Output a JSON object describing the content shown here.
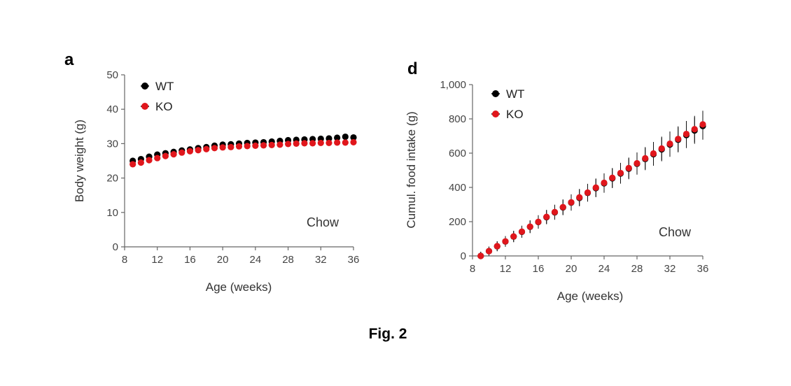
{
  "caption": "Fig. 2",
  "chart_data": [
    {
      "type": "scatter",
      "panel": "a",
      "xlabel": "Age (weeks)",
      "ylabel": "Body weight (g)",
      "xlim": [
        8,
        36
      ],
      "ylim": [
        0,
        50
      ],
      "xticks": [
        "8",
        "12",
        "16",
        "20",
        "24",
        "28",
        "32",
        "36"
      ],
      "yticks": [
        "0",
        "10",
        "20",
        "30",
        "40",
        "50"
      ],
      "annotation": "Chow",
      "legend_position": "top-left",
      "grid": false,
      "x": [
        9,
        10,
        11,
        12,
        13,
        14,
        15,
        16,
        17,
        18,
        19,
        20,
        21,
        22,
        23,
        24,
        25,
        26,
        27,
        28,
        29,
        30,
        31,
        32,
        33,
        34,
        35,
        36
      ],
      "series": [
        {
          "name": "WT",
          "color": "#000000",
          "values": [
            25.0,
            25.5,
            26.2,
            26.8,
            27.2,
            27.6,
            28.0,
            28.3,
            28.7,
            29.0,
            29.4,
            29.7,
            29.8,
            30.0,
            30.2,
            30.3,
            30.4,
            30.6,
            30.8,
            31.0,
            31.1,
            31.2,
            31.3,
            31.4,
            31.5,
            31.7,
            32.0,
            31.8
          ]
        },
        {
          "name": "KO",
          "color": "#e0161c",
          "values": [
            24.0,
            24.5,
            25.2,
            25.8,
            26.4,
            26.9,
            27.4,
            27.8,
            28.1,
            28.4,
            28.7,
            28.9,
            29.0,
            29.2,
            29.3,
            29.4,
            29.5,
            29.6,
            29.7,
            29.9,
            30.0,
            30.1,
            30.1,
            30.2,
            30.2,
            30.3,
            30.3,
            30.4
          ]
        }
      ]
    },
    {
      "type": "scatter",
      "panel": "d",
      "xlabel": "Age (weeks)",
      "ylabel": "Cumul. food intake (g)",
      "xlim": [
        8,
        36
      ],
      "ylim": [
        0,
        1000
      ],
      "xticks": [
        "8",
        "12",
        "16",
        "20",
        "24",
        "28",
        "32",
        "36"
      ],
      "yticks": [
        "0",
        "200",
        "400",
        "600",
        "800",
        "1,000"
      ],
      "annotation": "Chow",
      "legend_position": "top-left",
      "grid": false,
      "x": [
        9,
        10,
        11,
        12,
        13,
        14,
        15,
        16,
        17,
        18,
        19,
        20,
        21,
        22,
        23,
        24,
        25,
        26,
        27,
        28,
        29,
        30,
        31,
        32,
        33,
        34,
        35,
        36
      ],
      "series": [
        {
          "name": "WT",
          "color": "#000000",
          "values": [
            0,
            28,
            56,
            84,
            113,
            141,
            170,
            198,
            226,
            254,
            283,
            311,
            339,
            368,
            396,
            424,
            453,
            481,
            509,
            538,
            566,
            594,
            622,
            650,
            678,
            705,
            732,
            758
          ]
        },
        {
          "name": "KO",
          "color": "#e0161c",
          "values": [
            0,
            28,
            57,
            85,
            114,
            142,
            171,
            199,
            228,
            256,
            285,
            313,
            342,
            370,
            399,
            427,
            456,
            484,
            513,
            541,
            570,
            598,
            627,
            655,
            683,
            712,
            740,
            768
          ]
        }
      ]
    }
  ]
}
